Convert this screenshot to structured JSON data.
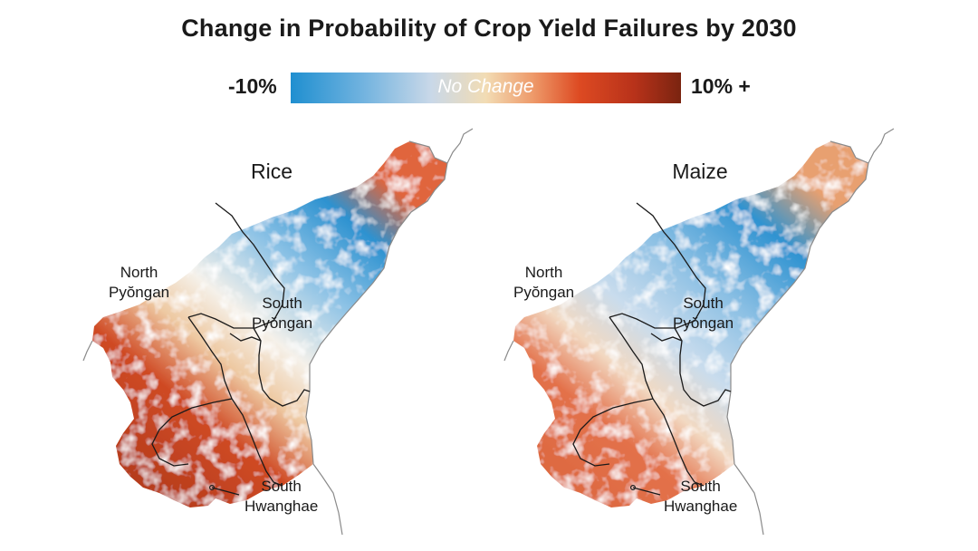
{
  "title": "Change in Probability of Crop Yield Failures by 2030",
  "legend": {
    "min_label": "-10%",
    "center_label": "No Change",
    "max_label": "10% +",
    "colors": [
      "#1f8fd0",
      "#c9d8e8",
      "#f2dcb4",
      "#dd4a22",
      "#7a2410"
    ]
  },
  "maps": [
    {
      "crop": "Rice",
      "regions": {
        "north_pyongan": "North\nPyŏngan",
        "south_pyongan": "South\nPyŏngan",
        "south_hwanghae": "South\nHwanghae"
      }
    },
    {
      "crop": "Maize",
      "regions": {
        "north_pyongan": "North\nPyŏngan",
        "south_pyongan": "South\nPyŏngan",
        "south_hwanghae": "South\nHwanghae"
      }
    }
  ]
}
